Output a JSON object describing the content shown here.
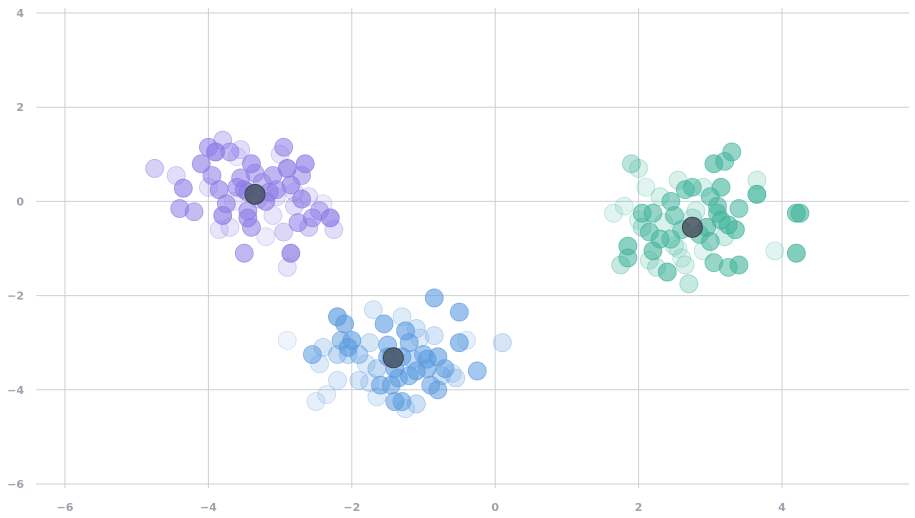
{
  "chart_data": {
    "type": "scatter",
    "title": "",
    "xlabel": "",
    "ylabel": "",
    "xlim": [
      -6.3,
      5.8
    ],
    "ylim": [
      -6.0,
      4.0
    ],
    "grid": true,
    "x_ticks": [
      -6,
      -4,
      -2,
      0,
      2,
      4
    ],
    "y_ticks": [
      -6,
      -4,
      -2,
      0,
      2,
      4
    ],
    "x_tick_labels": [
      "−6",
      "−4",
      "−2",
      "0",
      "2",
      "4"
    ],
    "y_tick_labels": [
      "−6",
      "−4",
      "−2",
      "0",
      "2",
      "4"
    ],
    "series": [
      {
        "color": "#8c7ae6",
        "points": [
          [
            -4.75,
            0.7
          ],
          [
            -4.45,
            0.55
          ],
          [
            -4.35,
            0.28
          ],
          [
            -4.4,
            -0.15
          ],
          [
            -4.2,
            -0.22
          ],
          [
            -4.1,
            0.8
          ],
          [
            -4.0,
            1.15
          ],
          [
            -3.9,
            1.05
          ],
          [
            -3.95,
            0.55
          ],
          [
            -3.8,
            1.3
          ],
          [
            -3.7,
            1.05
          ],
          [
            -3.6,
            0.95
          ],
          [
            -3.55,
            1.1
          ],
          [
            -3.85,
            0.25
          ],
          [
            -3.75,
            -0.05
          ],
          [
            -3.8,
            -0.3
          ],
          [
            -3.7,
            -0.55
          ],
          [
            -3.55,
            0.5
          ],
          [
            -3.5,
            0.25
          ],
          [
            -3.45,
            -0.2
          ],
          [
            -3.4,
            -0.55
          ],
          [
            -3.35,
            0.6
          ],
          [
            -3.25,
            0.4
          ],
          [
            -3.2,
            0.0
          ],
          [
            -3.1,
            -0.3
          ],
          [
            -3.05,
            0.25
          ],
          [
            -3.0,
            1.0
          ],
          [
            -2.95,
            1.15
          ],
          [
            -2.9,
            0.7
          ],
          [
            -2.85,
            0.35
          ],
          [
            -2.8,
            -0.1
          ],
          [
            -2.75,
            -0.45
          ],
          [
            -2.7,
            0.55
          ],
          [
            -2.65,
            0.8
          ],
          [
            -2.6,
            0.1
          ],
          [
            -2.55,
            -0.35
          ],
          [
            -2.45,
            -0.2
          ],
          [
            -2.4,
            -0.05
          ],
          [
            -2.3,
            -0.35
          ],
          [
            -2.25,
            -0.6
          ],
          [
            -2.9,
            -1.4
          ],
          [
            -3.5,
            -1.1
          ],
          [
            -2.85,
            -1.1
          ],
          [
            -3.05,
            0.1
          ],
          [
            -3.6,
            0.3
          ],
          [
            -3.35,
            0.15
          ],
          [
            -3.45,
            0.2
          ],
          [
            -3.3,
            0.05
          ],
          [
            -3.15,
            0.2
          ],
          [
            -3.65,
            0.0
          ],
          [
            -3.45,
            -0.35
          ],
          [
            -2.8,
            0.2
          ],
          [
            -2.95,
            -0.65
          ],
          [
            -3.2,
            -0.75
          ],
          [
            -2.7,
            0.05
          ],
          [
            -3.1,
            0.55
          ],
          [
            -4.0,
            0.3
          ],
          [
            -3.85,
            -0.6
          ],
          [
            -2.6,
            -0.55
          ],
          [
            -3.4,
            0.8
          ]
        ],
        "opacity": [
          0.35,
          0.25,
          0.6,
          0.55,
          0.5,
          0.6,
          0.55,
          0.7,
          0.55,
          0.35,
          0.5,
          0.15,
          0.25,
          0.6,
          0.55,
          0.65,
          0.2,
          0.55,
          0.6,
          0.55,
          0.55,
          0.5,
          0.45,
          0.6,
          0.2,
          0.55,
          0.2,
          0.55,
          0.7,
          0.6,
          0.25,
          0.55,
          0.5,
          0.65,
          0.2,
          0.55,
          0.45,
          0.15,
          0.7,
          0.25,
          0.2,
          0.55,
          0.7,
          0.2,
          0.55,
          0.6,
          0.55,
          0.3,
          0.55,
          0.15,
          0.6,
          0.2,
          0.3,
          0.15,
          0.6,
          0.55,
          0.2,
          0.2,
          0.35,
          0.6
        ],
        "centroid": [
          -3.35,
          0.15
        ]
      },
      {
        "color": "#5b9be0",
        "points": [
          [
            -2.2,
            -2.45
          ],
          [
            -2.1,
            -2.6
          ],
          [
            -2.0,
            -2.95
          ],
          [
            -2.2,
            -3.25
          ],
          [
            -2.05,
            -3.1
          ],
          [
            -1.9,
            -3.25
          ],
          [
            -1.8,
            -3.45
          ],
          [
            -1.75,
            -3.0
          ],
          [
            -1.7,
            -2.3
          ],
          [
            -1.55,
            -2.6
          ],
          [
            -1.5,
            -3.05
          ],
          [
            -1.45,
            -3.3
          ],
          [
            -1.4,
            -3.55
          ],
          [
            -1.35,
            -3.75
          ],
          [
            -1.3,
            -2.45
          ],
          [
            -1.25,
            -2.75
          ],
          [
            -1.2,
            -3.0
          ],
          [
            -1.15,
            -3.35
          ],
          [
            -1.1,
            -3.6
          ],
          [
            -1.05,
            -2.9
          ],
          [
            -1.0,
            -3.25
          ],
          [
            -0.95,
            -3.55
          ],
          [
            -0.9,
            -3.9
          ],
          [
            -0.85,
            -2.85
          ],
          [
            -0.8,
            -3.3
          ],
          [
            -0.75,
            -3.7
          ],
          [
            -0.7,
            -3.55
          ],
          [
            -0.6,
            -3.65
          ],
          [
            -0.5,
            -2.35
          ],
          [
            -0.5,
            -3.0
          ],
          [
            -0.4,
            -2.95
          ],
          [
            -0.25,
            -3.6
          ],
          [
            0.1,
            -3.0
          ],
          [
            -0.85,
            -2.05
          ],
          [
            -1.3,
            -4.25
          ],
          [
            -1.4,
            -4.25
          ],
          [
            -1.25,
            -4.4
          ],
          [
            -1.1,
            -4.3
          ],
          [
            -1.6,
            -3.9
          ],
          [
            -2.2,
            -3.8
          ],
          [
            -2.55,
            -3.25
          ],
          [
            -2.45,
            -3.45
          ],
          [
            -2.4,
            -3.1
          ],
          [
            -2.5,
            -4.25
          ],
          [
            -2.35,
            -4.1
          ],
          [
            -2.9,
            -2.95
          ],
          [
            -1.9,
            -3.8
          ],
          [
            -1.65,
            -3.55
          ],
          [
            -1.5,
            -3.3
          ],
          [
            -1.45,
            -3.9
          ],
          [
            -1.3,
            -3.3
          ],
          [
            -1.2,
            -3.7
          ],
          [
            -1.1,
            -2.7
          ],
          [
            -0.95,
            -3.35
          ],
          [
            -0.8,
            -4.0
          ],
          [
            -1.65,
            -4.15
          ],
          [
            -2.05,
            -3.25
          ],
          [
            -0.55,
            -3.75
          ],
          [
            -1.75,
            -3.85
          ],
          [
            -2.15,
            -2.95
          ]
        ],
        "opacity": [
          0.65,
          0.6,
          0.6,
          0.35,
          0.6,
          0.4,
          0.2,
          0.25,
          0.2,
          0.6,
          0.55,
          0.45,
          0.6,
          0.55,
          0.2,
          0.6,
          0.55,
          0.35,
          0.6,
          0.2,
          0.55,
          0.55,
          0.55,
          0.25,
          0.6,
          0.3,
          0.55,
          0.2,
          0.6,
          0.6,
          0.15,
          0.55,
          0.25,
          0.6,
          0.55,
          0.55,
          0.2,
          0.3,
          0.55,
          0.2,
          0.55,
          0.2,
          0.25,
          0.15,
          0.15,
          0.1,
          0.25,
          0.35,
          0.55,
          0.55,
          0.6,
          0.55,
          0.25,
          0.6,
          0.55,
          0.2,
          0.3,
          0.25,
          0.2,
          0.5
        ],
        "centroid": [
          -1.42,
          -3.32
        ]
      },
      {
        "color": "#3fb39a",
        "points": [
          [
            1.65,
            -0.25
          ],
          [
            1.75,
            -1.35
          ],
          [
            1.85,
            -1.2
          ],
          [
            1.85,
            -0.95
          ],
          [
            1.9,
            0.8
          ],
          [
            2.0,
            0.7
          ],
          [
            2.0,
            -0.4
          ],
          [
            2.05,
            -0.25
          ],
          [
            2.1,
            0.3
          ],
          [
            2.15,
            -0.65
          ],
          [
            2.2,
            -1.05
          ],
          [
            2.2,
            -0.25
          ],
          [
            2.25,
            -1.4
          ],
          [
            2.3,
            -0.8
          ],
          [
            2.4,
            -1.5
          ],
          [
            2.45,
            0.0
          ],
          [
            2.5,
            -0.3
          ],
          [
            2.55,
            -1.0
          ],
          [
            2.55,
            0.45
          ],
          [
            2.65,
            0.25
          ],
          [
            2.7,
            -1.75
          ],
          [
            2.75,
            0.3
          ],
          [
            2.8,
            -0.2
          ],
          [
            2.85,
            -0.7
          ],
          [
            2.9,
            -1.05
          ],
          [
            2.95,
            -0.55
          ],
          [
            3.0,
            0.1
          ],
          [
            3.05,
            0.8
          ],
          [
            3.1,
            -0.25
          ],
          [
            3.15,
            -0.4
          ],
          [
            3.15,
            0.3
          ],
          [
            3.2,
            0.85
          ],
          [
            3.25,
            -0.5
          ],
          [
            3.25,
            -1.4
          ],
          [
            3.3,
            1.05
          ],
          [
            3.35,
            -0.6
          ],
          [
            3.4,
            -0.15
          ],
          [
            3.4,
            -1.35
          ],
          [
            3.65,
            0.15
          ],
          [
            3.65,
            0.45
          ],
          [
            3.9,
            -1.05
          ],
          [
            4.2,
            -0.25
          ],
          [
            4.25,
            -0.25
          ],
          [
            4.2,
            -1.1
          ],
          [
            2.5,
            -0.95
          ],
          [
            2.6,
            -1.2
          ],
          [
            2.35,
            -0.45
          ],
          [
            2.05,
            -0.55
          ],
          [
            2.75,
            -0.35
          ],
          [
            3.0,
            -0.85
          ],
          [
            3.1,
            -0.1
          ],
          [
            2.65,
            -1.35
          ],
          [
            2.9,
            0.3
          ],
          [
            3.2,
            -0.75
          ],
          [
            1.8,
            -0.1
          ],
          [
            2.3,
            0.1
          ],
          [
            2.6,
            -0.6
          ],
          [
            2.15,
            -1.25
          ],
          [
            3.05,
            -1.3
          ],
          [
            2.45,
            -0.8
          ]
        ],
        "opacity": [
          0.15,
          0.3,
          0.55,
          0.6,
          0.35,
          0.2,
          0.15,
          0.55,
          0.15,
          0.55,
          0.6,
          0.55,
          0.25,
          0.55,
          0.6,
          0.55,
          0.55,
          0.15,
          0.2,
          0.55,
          0.3,
          0.55,
          0.2,
          0.55,
          0.15,
          0.6,
          0.55,
          0.6,
          0.55,
          0.6,
          0.6,
          0.55,
          0.6,
          0.5,
          0.55,
          0.6,
          0.55,
          0.6,
          0.7,
          0.2,
          0.15,
          0.6,
          0.6,
          0.65,
          0.2,
          0.15,
          0.2,
          0.3,
          0.25,
          0.55,
          0.55,
          0.2,
          0.2,
          0.25,
          0.15,
          0.2,
          0.55,
          0.2,
          0.55,
          0.5
        ],
        "centroid": [
          2.75,
          -0.55
        ]
      }
    ]
  }
}
